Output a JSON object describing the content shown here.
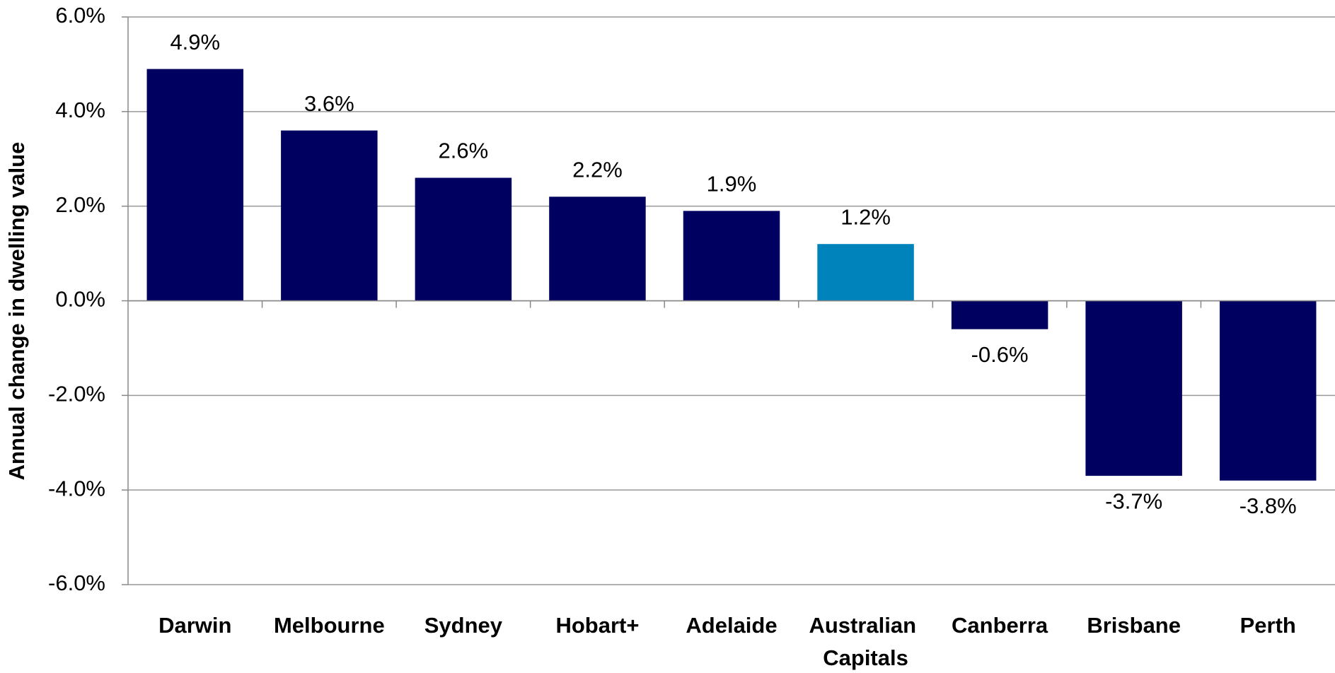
{
  "chart_data": {
    "type": "bar",
    "y_label": "Annual change in dwelling value",
    "categories": [
      "Darwin",
      "Melbourne",
      "Sydney",
      "Hobart+",
      "Adelaide",
      "Australian Capitals",
      "Canberra",
      "Brisbane",
      "Perth"
    ],
    "values": [
      4.9,
      3.6,
      2.6,
      2.2,
      1.9,
      1.2,
      -0.6,
      -3.7,
      -3.8
    ],
    "value_labels": [
      "4.9%",
      "3.6%",
      "2.6%",
      "2.2%",
      "1.9%",
      "1.2%",
      "-0.6%",
      "-3.7%",
      "-3.8%"
    ],
    "colors": [
      "#000060",
      "#000060",
      "#000060",
      "#000060",
      "#000060",
      "#0082bb",
      "#000060",
      "#000060",
      "#000060"
    ],
    "ylim": [
      -6,
      6
    ],
    "yticks": [
      {
        "value": -6,
        "label": "-6.0%"
      },
      {
        "value": -4,
        "label": "-4.0%"
      },
      {
        "value": -2,
        "label": "-2.0%"
      },
      {
        "value": 0,
        "label": "0.0%"
      },
      {
        "value": 2,
        "label": "2.0%"
      },
      {
        "value": 4,
        "label": "4.0%"
      },
      {
        "value": 6,
        "label": "6.0%"
      }
    ],
    "grid": true
  }
}
